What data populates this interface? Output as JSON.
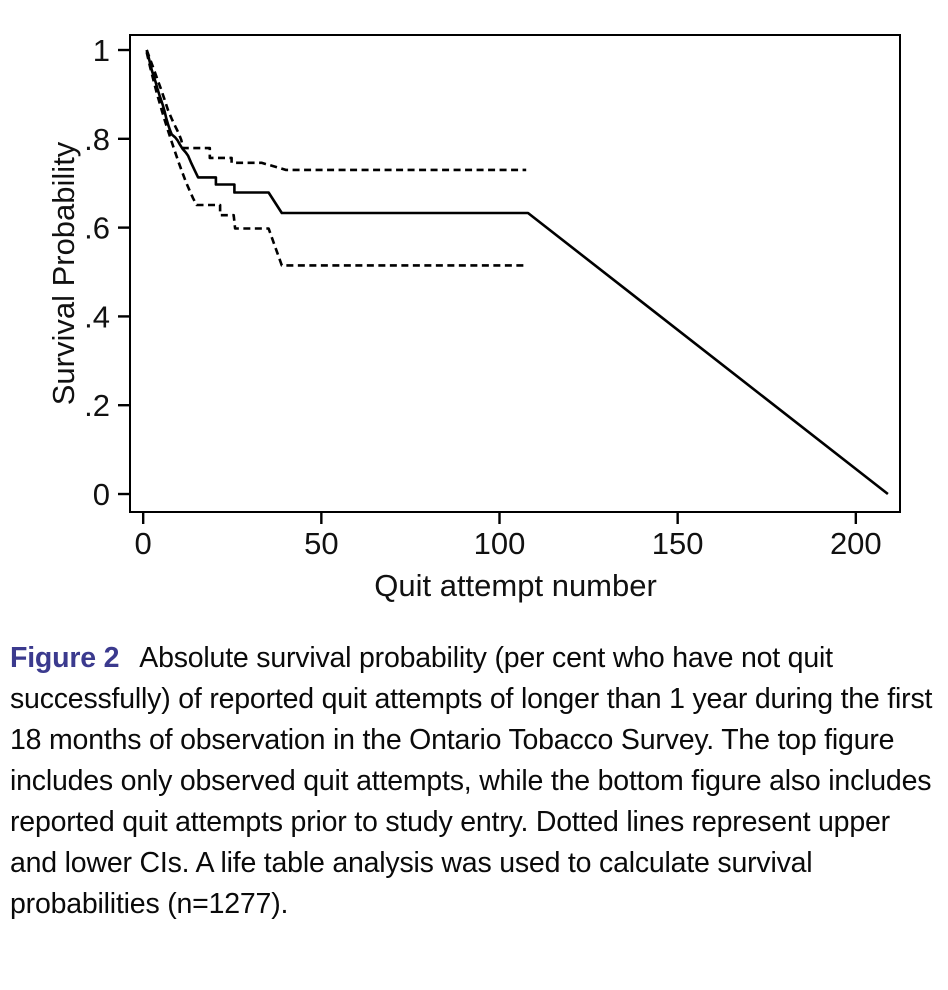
{
  "caption": {
    "label": "Figure 2",
    "text": "Absolute survival probability (per cent who have not quit successfully) of reported quit attempts of longer than 1 year during the first 18 months of observation in the Ontario Tobacco Survey. The top figure includes only observed quit attempts, while the bottom figure also includes reported quit attempts prior to study entry. Dotted lines represent upper and lower CIs. A life table analysis was used to calculate survival probabilities (n=1277)."
  },
  "colors": {
    "axis": "#000000",
    "text": "#111111",
    "figure_label": "#3b3a8e",
    "background": "#ffffff"
  },
  "chart_data": {
    "type": "line",
    "title": "",
    "xlabel": "Quit attempt number",
    "ylabel": "Survival Probability",
    "xlim": [
      -3.7,
      212.4
    ],
    "ylim": [
      -0.0405,
      1.0338
    ],
    "grid": false,
    "legend": "none",
    "x_ticks": [
      {
        "v": 0,
        "label": "0"
      },
      {
        "v": 50,
        "label": "50"
      },
      {
        "v": 100,
        "label": "100"
      },
      {
        "v": 150,
        "label": "150"
      },
      {
        "v": 200,
        "label": "200"
      }
    ],
    "y_ticks": [
      {
        "v": 0,
        "label": "0"
      },
      {
        "v": 0.2,
        "label": ".2"
      },
      {
        "v": 0.4,
        "label": ".4"
      },
      {
        "v": 0.6,
        "label": ".6"
      },
      {
        "v": 0.8,
        "label": ".8"
      },
      {
        "v": 1,
        "label": "1"
      }
    ],
    "series": [
      {
        "name": "survival-curve",
        "style": "solid",
        "points": [
          [
            1,
            1.0
          ],
          [
            1.5,
            0.985
          ],
          [
            2,
            0.968
          ],
          [
            2.5,
            0.952
          ],
          [
            3,
            0.94
          ],
          [
            3.5,
            0.927
          ],
          [
            4,
            0.913
          ],
          [
            4.5,
            0.9
          ],
          [
            5,
            0.888
          ],
          [
            5.5,
            0.876
          ],
          [
            6,
            0.862
          ],
          [
            6.5,
            0.846
          ],
          [
            7,
            0.832
          ],
          [
            7.5,
            0.82
          ],
          [
            8,
            0.81
          ],
          [
            9,
            0.803
          ],
          [
            9.7,
            0.796
          ],
          [
            10.3,
            0.787
          ],
          [
            11,
            0.778
          ],
          [
            12,
            0.769
          ],
          [
            12.6,
            0.762
          ],
          [
            13.4,
            0.747
          ],
          [
            14.4,
            0.73
          ],
          [
            15.4,
            0.713
          ],
          [
            20.4,
            0.713
          ],
          [
            20.4,
            0.697
          ],
          [
            25.6,
            0.697
          ],
          [
            25.6,
            0.679
          ],
          [
            35.2,
            0.679
          ],
          [
            38.9,
            0.633
          ],
          [
            108,
            0.633
          ],
          [
            209,
            0
          ]
        ]
      },
      {
        "name": "upper-ci",
        "style": "dashed",
        "points": [
          [
            1,
            1.0
          ],
          [
            2,
            0.978
          ],
          [
            3,
            0.956
          ],
          [
            4,
            0.934
          ],
          [
            5,
            0.912
          ],
          [
            6,
            0.888
          ],
          [
            7,
            0.864
          ],
          [
            8,
            0.845
          ],
          [
            9,
            0.828
          ],
          [
            10,
            0.812
          ],
          [
            10.7,
            0.797
          ],
          [
            11.2,
            0.779
          ],
          [
            18.7,
            0.779
          ],
          [
            18.7,
            0.757
          ],
          [
            24.8,
            0.757
          ],
          [
            24.8,
            0.746
          ],
          [
            33.2,
            0.746
          ],
          [
            38.4,
            0.734
          ],
          [
            40,
            0.73
          ],
          [
            107.5,
            0.73
          ]
        ]
      },
      {
        "name": "lower-ci",
        "style": "dashed",
        "points": [
          [
            1,
            0.995
          ],
          [
            2,
            0.96
          ],
          [
            3,
            0.928
          ],
          [
            4,
            0.898
          ],
          [
            5,
            0.87
          ],
          [
            6,
            0.843
          ],
          [
            7,
            0.818
          ],
          [
            8,
            0.793
          ],
          [
            9,
            0.769
          ],
          [
            10,
            0.746
          ],
          [
            11,
            0.724
          ],
          [
            12,
            0.703
          ],
          [
            13,
            0.684
          ],
          [
            14,
            0.666
          ],
          [
            15,
            0.651
          ],
          [
            21.6,
            0.651
          ],
          [
            21.6,
            0.628
          ],
          [
            25.4,
            0.628
          ],
          [
            25.8,
            0.598
          ],
          [
            35.2,
            0.598
          ],
          [
            38.9,
            0.515
          ],
          [
            107.3,
            0.515
          ]
        ]
      }
    ]
  }
}
